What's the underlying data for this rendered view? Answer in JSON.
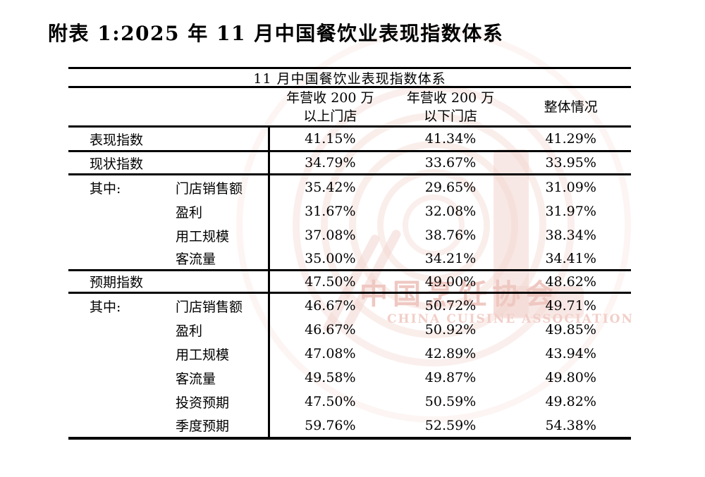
{
  "page": {
    "title": "附表 1:2025 年 11 月中国餐饮业表现指数体系"
  },
  "table": {
    "caption": "11 月中国餐饮业表现指数体系",
    "columns": {
      "col1_line1": "年营收 200 万",
      "col1_line2": "以上门店",
      "col2_line1": "年营收 200 万",
      "col2_line2": "以下门店",
      "col3": "整体情况"
    },
    "rows": [
      {
        "group": "表现指数",
        "sub": "",
        "above": "41.15%",
        "below": "41.34%",
        "overall": "41.29%"
      },
      {
        "group": "现状指数",
        "sub": "",
        "above": "34.79%",
        "below": "33.67%",
        "overall": "33.95%"
      },
      {
        "group": "其中:",
        "sub": "门店销售额",
        "above": "35.42%",
        "below": "29.65%",
        "overall": "31.09%"
      },
      {
        "group": "",
        "sub": "盈利",
        "above": "31.67%",
        "below": "32.08%",
        "overall": "31.97%"
      },
      {
        "group": "",
        "sub": "用工规模",
        "above": "37.08%",
        "below": "38.76%",
        "overall": "38.34%"
      },
      {
        "group": "",
        "sub": "客流量",
        "above": "35.00%",
        "below": "34.21%",
        "overall": "34.41%"
      },
      {
        "group": "预期指数",
        "sub": "",
        "above": "47.50%",
        "below": "49.00%",
        "overall": "48.62%"
      },
      {
        "group": "其中:",
        "sub": "门店销售额",
        "above": "46.67%",
        "below": "50.72%",
        "overall": "49.71%"
      },
      {
        "group": "",
        "sub": "盈利",
        "above": "46.67%",
        "below": "50.92%",
        "overall": "49.85%"
      },
      {
        "group": "",
        "sub": "用工规模",
        "above": "47.08%",
        "below": "42.89%",
        "overall": "43.94%"
      },
      {
        "group": "",
        "sub": "客流量",
        "above": "49.58%",
        "below": "49.87%",
        "overall": "49.80%"
      },
      {
        "group": "",
        "sub": "投资预期",
        "above": "47.50%",
        "below": "50.59%",
        "overall": "49.82%"
      },
      {
        "group": "",
        "sub": "季度预期",
        "above": "59.76%",
        "below": "52.59%",
        "overall": "54.38%"
      }
    ]
  },
  "watermark": {
    "text_cn": "中国烹饪协会",
    "text_en": "CHINA CUISINE ASSOCIATION",
    "accent_color": "#efc8c2"
  }
}
